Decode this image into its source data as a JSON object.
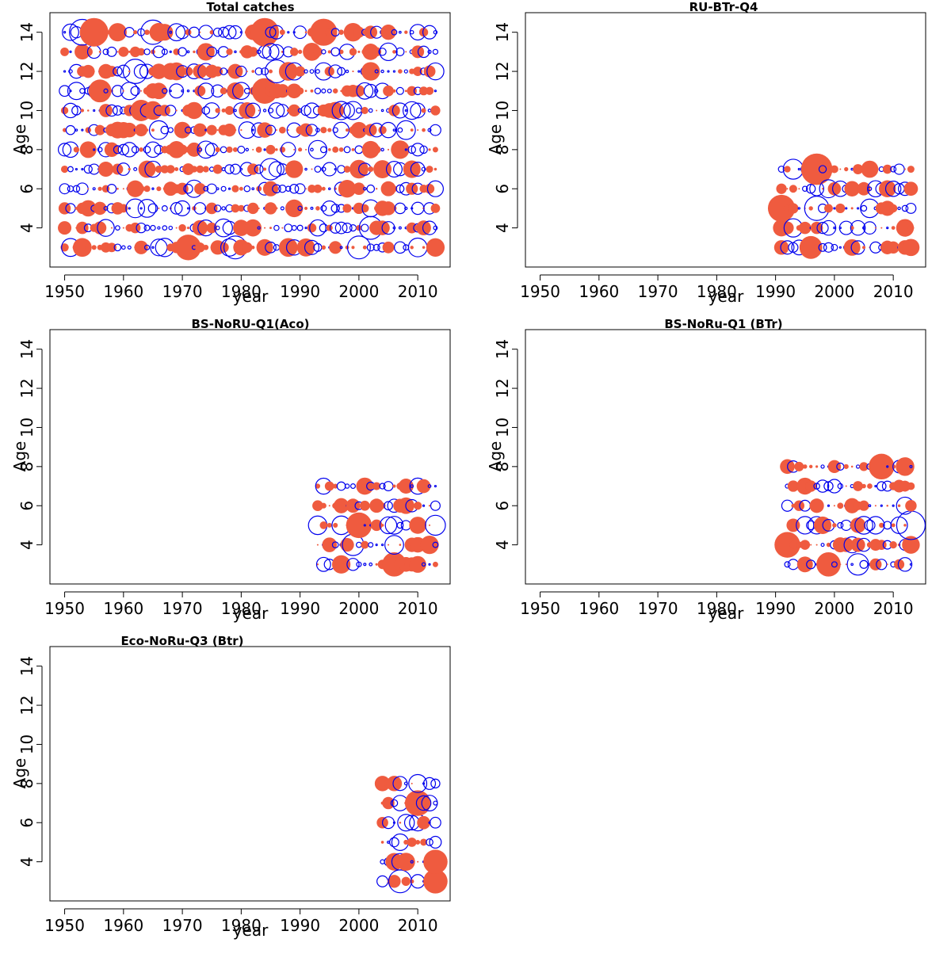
{
  "colors": {
    "positive": "#ef5b3f",
    "negative": "#0000ee"
  },
  "chart_data": [
    {
      "type": "scatter",
      "title": "Total catches",
      "xlabel": "year",
      "ylabel": "Age",
      "xlim": [
        1947.5,
        2015.5
      ],
      "ylim": [
        2.0,
        15.0
      ],
      "xticks": [
        "1950",
        "1960",
        "1970",
        "1980",
        "1990",
        "2000",
        "2010"
      ],
      "yticks": [
        "4",
        "6",
        "8",
        "10",
        "12",
        "14"
      ],
      "years": [
        1950,
        2013
      ],
      "ages": [
        3,
        14
      ],
      "highlights": [
        {
          "year": 1955,
          "age": 14,
          "sign": 1,
          "size": 1.0
        },
        {
          "year": 1953,
          "age": 14,
          "sign": -1,
          "size": 0.9
        },
        {
          "year": 1984,
          "age": 14,
          "sign": 1,
          "size": 1.0
        },
        {
          "year": 1994,
          "age": 14,
          "sign": 1,
          "size": 0.95
        },
        {
          "year": 1965,
          "age": 14,
          "sign": -1,
          "size": 0.85
        },
        {
          "year": 1962,
          "age": 12,
          "sign": -1,
          "size": 0.85
        },
        {
          "year": 1986,
          "age": 12,
          "sign": -1,
          "size": 0.8
        },
        {
          "year": 1984,
          "age": 11,
          "sign": 1,
          "size": 0.9
        },
        {
          "year": 1989,
          "age": 9,
          "sign": 1,
          "size": 1.2
        },
        {
          "year": 1989,
          "age": 9,
          "sign": -1,
          "size": 0.5
        },
        {
          "year": 1971,
          "age": 3,
          "sign": 1,
          "size": 0.9
        },
        {
          "year": 1979,
          "age": 3,
          "sign": -1,
          "size": 0.8
        },
        {
          "year": 2000,
          "age": 3,
          "sign": -1,
          "size": 0.8
        },
        {
          "year": 2002,
          "age": 4,
          "sign": -1,
          "size": 0.8
        },
        {
          "year": 1985,
          "age": 7,
          "sign": -1,
          "size": 0.75
        },
        {
          "year": 1956,
          "age": 11,
          "sign": 1,
          "size": 0.8
        },
        {
          "year": 1963,
          "age": 10,
          "sign": 1,
          "size": 0.75
        }
      ]
    },
    {
      "type": "scatter",
      "title": "RU-BTr-Q4",
      "xlabel": "year",
      "ylabel": "Age",
      "xlim": [
        1947.5,
        2015.5
      ],
      "ylim": [
        2.0,
        15.0
      ],
      "xticks": [
        "1950",
        "1960",
        "1970",
        "1980",
        "1990",
        "2000",
        "2010"
      ],
      "yticks": [
        "4",
        "6",
        "8",
        "10",
        "12",
        "14"
      ],
      "years": [
        1991,
        2013
      ],
      "ages": [
        3,
        7
      ],
      "highlights": [
        {
          "year": 1997,
          "age": 7,
          "sign": 1,
          "size": 1.1
        },
        {
          "year": 1991,
          "age": 5,
          "sign": 1,
          "size": 0.95
        },
        {
          "year": 1997,
          "age": 5,
          "sign": -1,
          "size": 0.85
        },
        {
          "year": 1996,
          "age": 3,
          "sign": 1,
          "size": 0.8
        },
        {
          "year": 1993,
          "age": 7,
          "sign": -1,
          "size": 0.7
        }
      ]
    },
    {
      "type": "scatter",
      "title": "BS-NoRU-Q1(Aco)",
      "xlabel": "year",
      "ylabel": "Age",
      "xlim": [
        1947.5,
        2015.5
      ],
      "ylim": [
        2.0,
        15.0
      ],
      "xticks": [
        "1950",
        "1960",
        "1970",
        "1980",
        "1990",
        "2000",
        "2010"
      ],
      "yticks": [
        "4",
        "6",
        "8",
        "10",
        "12",
        "14"
      ],
      "years": [
        1993,
        2013
      ],
      "ages": [
        3,
        7
      ],
      "highlights": [
        {
          "year": 2000,
          "age": 5,
          "sign": 1,
          "size": 0.9
        },
        {
          "year": 2006,
          "age": 3,
          "sign": 1,
          "size": 0.85
        },
        {
          "year": 2013,
          "age": 5,
          "sign": -1,
          "size": 0.7
        },
        {
          "year": 1999,
          "age": 4,
          "sign": -1,
          "size": 0.75
        }
      ]
    },
    {
      "type": "scatter",
      "title": "BS-NoRu-Q1 (BTr)",
      "xlabel": "year",
      "ylabel": "Age",
      "xlim": [
        1947.5,
        2015.5
      ],
      "ylim": [
        2.0,
        15.0
      ],
      "xticks": [
        "1950",
        "1960",
        "1970",
        "1980",
        "1990",
        "2000",
        "2010"
      ],
      "yticks": [
        "4",
        "6",
        "8",
        "10",
        "12",
        "14"
      ],
      "years": [
        1992,
        2013
      ],
      "ages": [
        3,
        8
      ],
      "highlights": [
        {
          "year": 2013,
          "age": 5,
          "sign": -1,
          "size": 1.0
        },
        {
          "year": 2008,
          "age": 8,
          "sign": 1,
          "size": 0.9
        },
        {
          "year": 1992,
          "age": 4,
          "sign": 1,
          "size": 0.9
        },
        {
          "year": 1999,
          "age": 3,
          "sign": 1,
          "size": 0.85
        },
        {
          "year": 2004,
          "age": 3,
          "sign": -1,
          "size": 0.75
        }
      ]
    },
    {
      "type": "scatter",
      "title": "Eco-NoRu-Q3 (Btr)",
      "xlabel": "year",
      "ylabel": "Age",
      "xlim": [
        1947.5,
        2015.5
      ],
      "ylim": [
        2.0,
        15.0
      ],
      "xticks": [
        "1950",
        "1960",
        "1970",
        "1980",
        "1990",
        "2000",
        "2010"
      ],
      "yticks": [
        "4",
        "6",
        "8",
        "10",
        "12",
        "14"
      ],
      "years": [
        2004,
        2013
      ],
      "ages": [
        3,
        8
      ],
      "highlights": [
        {
          "year": 2010,
          "age": 7,
          "sign": 1,
          "size": 0.9
        },
        {
          "year": 2013,
          "age": 4,
          "sign": 1,
          "size": 0.85
        },
        {
          "year": 2013,
          "age": 3,
          "sign": 1,
          "size": 0.85
        },
        {
          "year": 2007,
          "age": 3,
          "sign": -1,
          "size": 0.8
        }
      ]
    }
  ]
}
